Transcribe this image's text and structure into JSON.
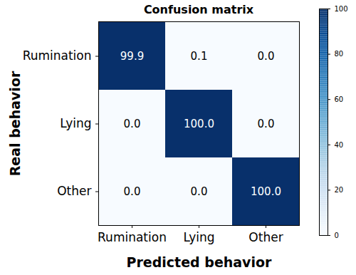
{
  "chart_data": {
    "type": "heatmap",
    "title": "Confusion matrix",
    "x_label": "Predicted behavior",
    "y_label": "Real behavior",
    "x_categories": [
      "Rumination",
      "Lying",
      "Other"
    ],
    "y_categories": [
      "Rumination",
      "Lying",
      "Other"
    ],
    "values": [
      [
        99.9,
        0.1,
        0.0
      ],
      [
        0.0,
        100.0,
        0.0
      ],
      [
        0.0,
        0.0,
        100.0
      ]
    ],
    "value_labels": [
      [
        "99.9",
        "0.1",
        "0.0"
      ],
      [
        "0.0",
        "100.0",
        "0.0"
      ],
      [
        "0.0",
        "0.0",
        "100.0"
      ]
    ],
    "data_labels": true,
    "color": "blues",
    "colorbar_range": [
      0,
      100
    ],
    "colorbar_ticks": [
      0,
      20,
      40,
      60,
      80,
      100
    ]
  }
}
